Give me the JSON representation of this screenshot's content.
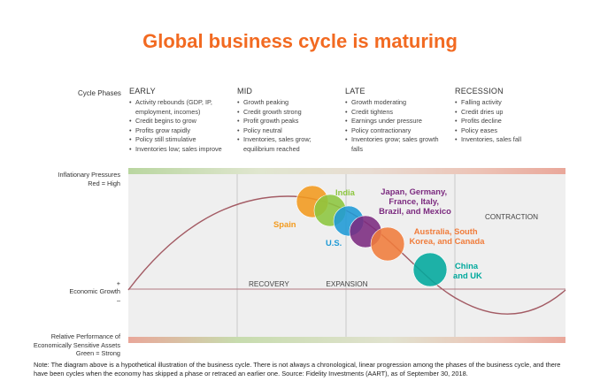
{
  "title": "Global business cycle is maturing",
  "cycle_phases_label": "Cycle Phases",
  "phases": [
    {
      "name": "EARLY",
      "bullets": [
        "Activity rebounds (GDP, IP, employment, incomes)",
        "Credit begins to grow",
        "Profits grow rapidly",
        "Policy still stimulative",
        "Inventories low; sales improve"
      ]
    },
    {
      "name": "MID",
      "bullets": [
        "Growth peaking",
        "Credit growth strong",
        "Profit growth peaks",
        "Policy neutral",
        "Inventories, sales grow; equilibrium reached"
      ]
    },
    {
      "name": "LATE",
      "bullets": [
        "Growth moderating",
        "Credit tightens",
        "Earnings under pressure",
        "Policy contractionary",
        "Inventories grow; sales growth falls"
      ]
    },
    {
      "name": "RECESSION",
      "bullets": [
        "Falling activity",
        "Credit dries up",
        "Profits decline",
        "Policy eases",
        "Inventories, sales fall"
      ]
    }
  ],
  "side_labels": {
    "inflation_line1": "Inflationary Pressures",
    "inflation_line2": "Red = High",
    "plus": "+",
    "growth": "Economic Growth",
    "minus": "–",
    "relperf_line1": "Relative Performance of",
    "relperf_line2": "Economically Sensitive Assets",
    "relperf_line3": "Green = Strong"
  },
  "zone_labels": {
    "recovery": "RECOVERY",
    "expansion": "EXPANSION",
    "contraction": "CONTRACTION"
  },
  "regions": [
    {
      "lines": [
        "Spain"
      ],
      "color": "#f29a1e"
    },
    {
      "lines": [
        "India"
      ],
      "color": "#8cc63f"
    },
    {
      "lines": [
        "U.S."
      ],
      "color": "#1e9ad6"
    },
    {
      "lines": [
        "Japan, Germany,",
        "France, Italy,",
        "Brazil, and Mexico"
      ],
      "color": "#7b2a7f"
    },
    {
      "lines": [
        "Australia, South",
        "Korea, and Canada"
      ],
      "color": "#f07c3b"
    },
    {
      "lines": [
        "China",
        "and UK"
      ],
      "color": "#00a99d"
    }
  ],
  "note": "Note: The diagram above is a hypothetical illustration of the business cycle. There is not always a chronological, linear progression among the phases of the business cycle, and there have been cycles when the economy has skipped a phase or retraced an earlier one. Source: Fidelity Investments (AART), as of September 30, 2018."
}
